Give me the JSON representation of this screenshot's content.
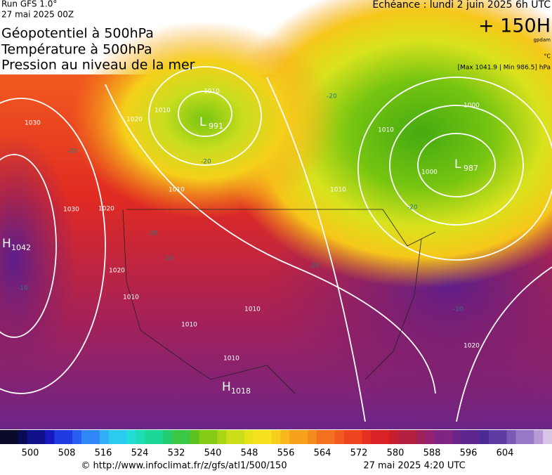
{
  "header": {
    "run": "Run GFS 1.0°",
    "run_date": "27 mai 2025 00Z",
    "titles": [
      "Géopotentiel à 500hPa",
      "Température à 500hPa",
      "Pression au niveau de la mer"
    ],
    "echeance": "Echéance : lundi 2 juin 2025 6h UTC",
    "forecast": "+ 150H",
    "unit_gpdam": "gpdam",
    "unit_temp": "°C",
    "pressure_range": "[Max 1041.9 | Min 986.5] hPa"
  },
  "map": {
    "centers": [
      {
        "letter": "H",
        "value": "1042"
      },
      {
        "letter": "L",
        "value": "991"
      },
      {
        "letter": "L",
        "value": "987"
      },
      {
        "letter": "H",
        "value": "1018"
      }
    ],
    "isobar_labels": [
      "1000",
      "1010",
      "1020",
      "1030",
      "1030",
      "1020",
      "1010",
      "1010",
      "1020",
      "1010",
      "1010",
      "1010",
      "1000",
      "1010",
      "1020",
      "1010",
      "1010"
    ],
    "temp_labels": [
      "-20",
      "-20",
      "-20",
      "-20",
      "-20",
      "-10",
      "-10",
      "-10",
      "-10"
    ]
  },
  "colorbar": {
    "ticks": [
      500,
      508,
      516,
      524,
      532,
      540,
      548,
      556,
      564,
      572,
      580,
      588,
      596,
      604
    ]
  },
  "footer": {
    "source": "© http://www.infoclimat.fr/z/gfs/atl1/500/150",
    "generated": "27 mai 2025  4:20 UTC"
  }
}
